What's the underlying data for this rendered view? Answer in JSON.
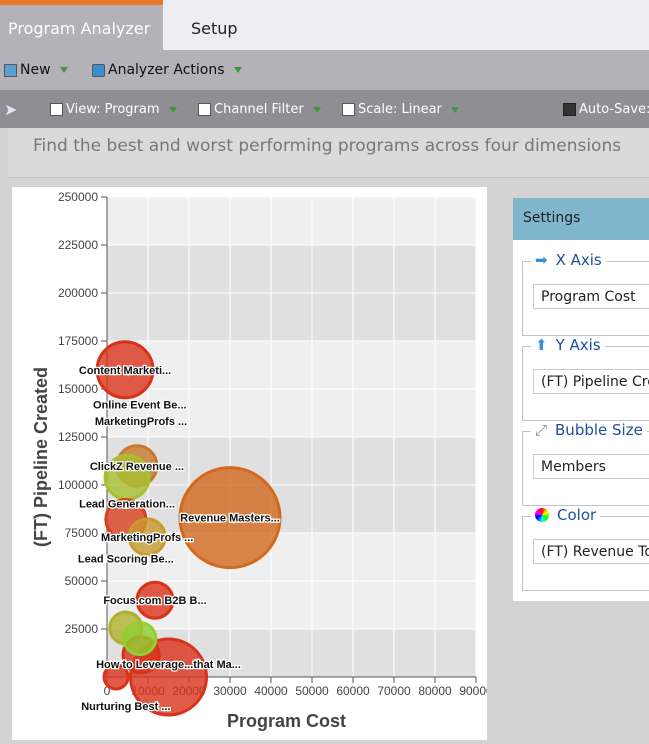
{
  "tabs": [
    {
      "label": "Program Analyzer",
      "active": true
    },
    {
      "label": "Setup",
      "active": false
    }
  ],
  "toolbar1": {
    "new_label": "New",
    "actions_label": "Analyzer Actions"
  },
  "toolbar2": {
    "view_label": "View: Program",
    "channel_label": "Channel Filter",
    "scale_label": "Scale: Linear",
    "autosave_label": "Auto-Save:"
  },
  "description": "Find the best and worst performing programs across four dimensions",
  "settings": {
    "title": "Settings",
    "x_axis": {
      "legend": "X Axis",
      "value": "Program Cost"
    },
    "y_axis": {
      "legend": "Y Axis",
      "value": "(FT) Pipeline Created"
    },
    "bubble_size": {
      "legend": "Bubble Size",
      "value": "Members"
    },
    "color": {
      "legend": "Color",
      "value": "(FT) Revenue To"
    }
  },
  "chart_data": {
    "type": "scatter",
    "xlabel": "Program Cost",
    "ylabel": "(FT) Pipeline Created",
    "xlim": [
      0,
      90000
    ],
    "ylim": [
      0,
      250000
    ],
    "xticks": [
      "0",
      "10000",
      "20000",
      "30000",
      "40000",
      "50000",
      "60000",
      "70000",
      "80000",
      "90000"
    ],
    "yticks": [
      "25000",
      "50000",
      "75000",
      "100000",
      "125000",
      "150000",
      "175000",
      "200000",
      "225000",
      "250000"
    ],
    "grid": true,
    "points": [
      {
        "label": "Revenue Masters...",
        "x": 30000,
        "y": 83000,
        "size": 50,
        "color": "#d2691e"
      },
      {
        "label": "How to Leverage...that Ma...",
        "x": 15000,
        "y": 0,
        "size": 38,
        "color": "#d9321a"
      },
      {
        "label": "Content Marketi...",
        "x": 4400,
        "y": 160000,
        "size": 28,
        "color": "#d9321a"
      },
      {
        "label": "ClickZ Revenue ...",
        "x": 7300,
        "y": 110000,
        "size": 20,
        "color": "#c8782a"
      },
      {
        "label": "Lead Generation...",
        "x": 4900,
        "y": 104000,
        "size": 22,
        "color": "#a8c030"
      },
      {
        "label": "Lead Scoring Be...",
        "x": 4600,
        "y": 82000,
        "size": 20,
        "color": "#d9401e"
      },
      {
        "label": "MarketingProfs ...",
        "x": 9800,
        "y": 73000,
        "size": 18,
        "color": "#c89a30"
      },
      {
        "label": "Focus.com B2B B...",
        "x": 11700,
        "y": 40000,
        "size": 18,
        "color": "#d9321a"
      },
      {
        "label": "Nurturing Best ...",
        "x": 4600,
        "y": 25500,
        "size": 16,
        "color": "#b0b030"
      },
      {
        "label": "MarketingProfs ...",
        "x": 8300,
        "y": 11500,
        "size": 18,
        "color": "#d9321a"
      },
      {
        "label": "Online Event Be...",
        "x": 8000,
        "y": 20000,
        "size": 16,
        "color": "#90d030"
      },
      {
        "label": "",
        "x": 2200,
        "y": 0,
        "size": 12,
        "color": "#d9321a"
      }
    ]
  }
}
